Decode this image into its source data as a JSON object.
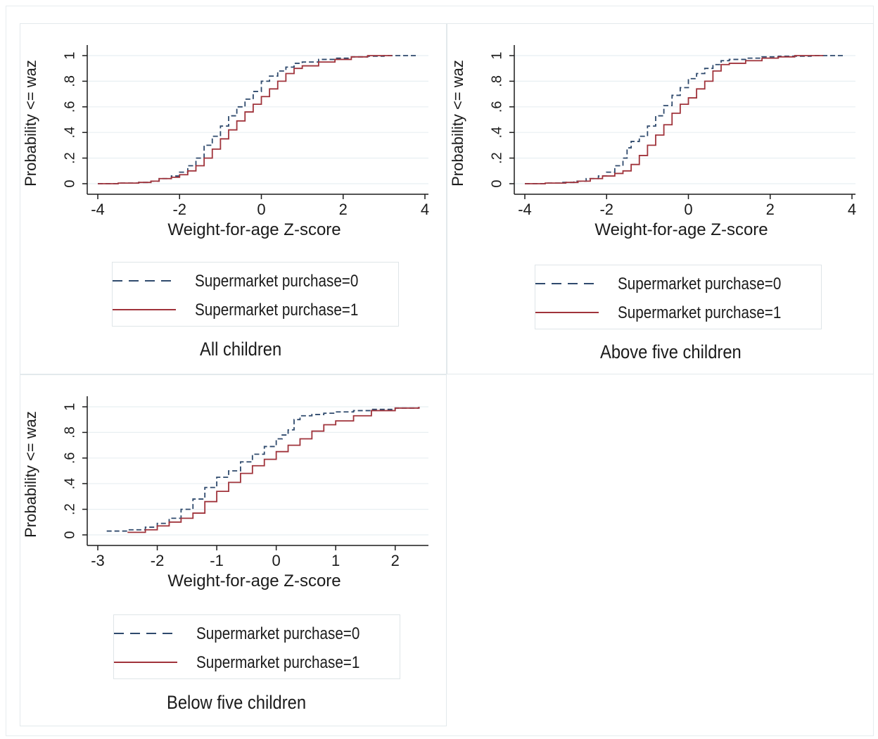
{
  "colors": {
    "series0": "#2f4a6d",
    "series1": "#a0333b",
    "grid": "#e8eff2",
    "axis": "#1b1b1b"
  },
  "panels": [
    {
      "caption": "All children",
      "legend": [
        "Supermarket purchase=0",
        "Supermarket purchase=1"
      ]
    },
    {
      "caption": "Above five children",
      "legend": [
        "Supermarket purchase=0",
        "Supermarket purchase=1"
      ]
    },
    {
      "caption": "Below five children",
      "legend": [
        "Supermarket purchase=0",
        "Supermarket purchase=1"
      ]
    }
  ],
  "chart_data": [
    {
      "type": "line",
      "title": "All children",
      "xlabel": "Weight-for-age Z-score",
      "ylabel": "Probability <= waz",
      "xlim": [
        -4,
        4
      ],
      "ylim": [
        0,
        1
      ],
      "xticks": [
        -4,
        -2,
        0,
        2,
        4
      ],
      "yticks": [
        0,
        0.2,
        0.4,
        0.6,
        0.8,
        1
      ],
      "ytick_labels": [
        "0",
        ".2",
        ".4",
        ".6",
        ".8",
        "1"
      ],
      "grid": true,
      "legend_position": "bottom",
      "series": [
        {
          "name": "Supermarket purchase=0",
          "style": "dashed",
          "x": [
            -4,
            -3.5,
            -3,
            -2.7,
            -2.5,
            -2.2,
            -2.0,
            -1.8,
            -1.6,
            -1.4,
            -1.2,
            -1.0,
            -0.8,
            -0.6,
            -0.4,
            -0.2,
            0,
            0.2,
            0.4,
            0.6,
            0.8,
            1.0,
            1.4,
            1.8,
            2.2,
            2.6,
            3.0,
            3.5,
            3.8
          ],
          "y": [
            0,
            0.005,
            0.01,
            0.02,
            0.04,
            0.06,
            0.09,
            0.14,
            0.2,
            0.3,
            0.37,
            0.45,
            0.53,
            0.6,
            0.66,
            0.72,
            0.8,
            0.84,
            0.88,
            0.91,
            0.94,
            0.95,
            0.97,
            0.98,
            0.99,
            0.995,
            1,
            1,
            1
          ]
        },
        {
          "name": "Supermarket purchase=1",
          "style": "solid",
          "x": [
            -4,
            -3.5,
            -3,
            -2.7,
            -2.5,
            -2.2,
            -2.0,
            -1.8,
            -1.6,
            -1.4,
            -1.2,
            -1.0,
            -0.8,
            -0.6,
            -0.4,
            -0.2,
            0,
            0.2,
            0.4,
            0.6,
            0.8,
            1.0,
            1.4,
            1.8,
            2.2,
            2.6,
            3.0,
            3.2
          ],
          "y": [
            0,
            0.005,
            0.01,
            0.02,
            0.04,
            0.05,
            0.07,
            0.1,
            0.14,
            0.2,
            0.27,
            0.35,
            0.42,
            0.49,
            0.56,
            0.62,
            0.68,
            0.74,
            0.8,
            0.86,
            0.9,
            0.92,
            0.95,
            0.97,
            0.99,
            1,
            1,
            1
          ]
        }
      ]
    },
    {
      "type": "line",
      "title": "Above five children",
      "xlabel": "Weight-for-age Z-score",
      "ylabel": "Probability <= waz",
      "xlim": [
        -4,
        4
      ],
      "ylim": [
        0,
        1
      ],
      "xticks": [
        -4,
        -2,
        0,
        2,
        4
      ],
      "yticks": [
        0,
        0.2,
        0.4,
        0.6,
        0.8,
        1
      ],
      "ytick_labels": [
        "0",
        ".2",
        ".4",
        ".6",
        ".8",
        "1"
      ],
      "grid": true,
      "legend_position": "bottom",
      "series": [
        {
          "name": "Supermarket purchase=0",
          "style": "dashed",
          "x": [
            -4,
            -3.5,
            -3.1,
            -2.8,
            -2.5,
            -2.2,
            -2.0,
            -1.8,
            -1.6,
            -1.5,
            -1.4,
            -1.2,
            -1.0,
            -0.8,
            -0.6,
            -0.4,
            -0.2,
            0,
            0.2,
            0.4,
            0.6,
            0.8,
            1.0,
            1.4,
            1.8,
            2.2,
            3.0,
            3.8
          ],
          "y": [
            0,
            0.005,
            0.01,
            0.02,
            0.04,
            0.06,
            0.09,
            0.14,
            0.2,
            0.28,
            0.33,
            0.37,
            0.45,
            0.53,
            0.61,
            0.69,
            0.75,
            0.82,
            0.86,
            0.9,
            0.93,
            0.96,
            0.97,
            0.98,
            0.99,
            0.995,
            1,
            1
          ]
        },
        {
          "name": "Supermarket purchase=1",
          "style": "solid",
          "x": [
            -4,
            -3.5,
            -3.0,
            -2.7,
            -2.4,
            -2.1,
            -1.8,
            -1.6,
            -1.4,
            -1.2,
            -1.0,
            -0.8,
            -0.6,
            -0.4,
            -0.2,
            0,
            0.2,
            0.4,
            0.6,
            0.8,
            1.0,
            1.4,
            1.8,
            2.2,
            2.6,
            3.3
          ],
          "y": [
            0,
            0.005,
            0.01,
            0.02,
            0.04,
            0.06,
            0.08,
            0.1,
            0.15,
            0.22,
            0.3,
            0.38,
            0.46,
            0.55,
            0.62,
            0.67,
            0.74,
            0.8,
            0.88,
            0.93,
            0.94,
            0.96,
            0.98,
            0.99,
            1,
            1
          ]
        }
      ]
    },
    {
      "type": "line",
      "title": "Below five children",
      "xlabel": "Weight-for-age Z-score",
      "ylabel": "Probability <= waz",
      "xlim": [
        -3,
        2.5
      ],
      "ylim": [
        0,
        1
      ],
      "xticks": [
        -3,
        -2,
        -1,
        0,
        1,
        2
      ],
      "yticks": [
        0,
        0.2,
        0.4,
        0.6,
        0.8,
        1
      ],
      "ytick_labels": [
        "0",
        ".2",
        ".4",
        ".6",
        ".8",
        "1"
      ],
      "grid": true,
      "legend_position": "bottom",
      "series": [
        {
          "name": "Supermarket purchase=0",
          "style": "dashed",
          "x": [
            -2.85,
            -2.5,
            -2.2,
            -2.0,
            -1.8,
            -1.6,
            -1.4,
            -1.2,
            -1.0,
            -0.8,
            -0.6,
            -0.4,
            -0.2,
            0,
            0.1,
            0.2,
            0.3,
            0.4,
            0.6,
            0.8,
            1.0,
            1.3,
            1.6,
            2.0,
            2.4
          ],
          "y": [
            0.03,
            0.04,
            0.06,
            0.09,
            0.13,
            0.2,
            0.28,
            0.37,
            0.45,
            0.5,
            0.57,
            0.63,
            0.69,
            0.75,
            0.78,
            0.82,
            0.9,
            0.93,
            0.94,
            0.95,
            0.96,
            0.97,
            0.98,
            0.99,
            1
          ]
        },
        {
          "name": "Supermarket purchase=1",
          "style": "solid",
          "x": [
            -2.5,
            -2.2,
            -2.0,
            -1.8,
            -1.6,
            -1.4,
            -1.2,
            -1.0,
            -0.8,
            -0.6,
            -0.4,
            -0.2,
            0,
            0.2,
            0.4,
            0.6,
            0.8,
            1.0,
            1.3,
            1.6,
            2.0,
            2.4
          ],
          "y": [
            0.02,
            0.04,
            0.07,
            0.1,
            0.13,
            0.17,
            0.26,
            0.34,
            0.41,
            0.48,
            0.54,
            0.59,
            0.65,
            0.7,
            0.75,
            0.81,
            0.86,
            0.89,
            0.93,
            0.97,
            0.99,
            1
          ]
        }
      ]
    }
  ]
}
